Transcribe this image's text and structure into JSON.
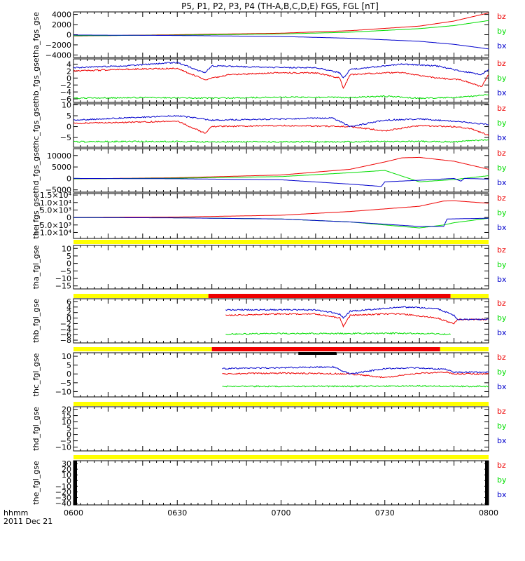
{
  "title": "P5, P1, P2, P3, P4 (TH-A,B,C,D,E) FGS, FGL [nT]",
  "footer": {
    "label_time": "hhmm",
    "label_date": "2011 Dec 21"
  },
  "colors": {
    "bz": "#ee0000",
    "by": "#00dd00",
    "bx": "#0000cc",
    "bar_yellow": "#ffff00",
    "bar_red": "#ee0000",
    "bar_black": "#000000"
  },
  "chart_data": {
    "type": "line",
    "xlabel": "hhmm",
    "x_ticks": [
      "0600",
      "0630",
      "0700",
      "0730",
      "0800"
    ],
    "x_range_minutes": [
      0,
      120
    ],
    "legend": [
      "bz",
      "by",
      "bx"
    ],
    "panels": [
      {
        "name": "tha_fgs_gse",
        "ylim": [
          -4500,
          4500
        ],
        "yticks": [
          "4000",
          "2000",
          "0",
          "−2000",
          "−4000"
        ],
        "ytick_values": [
          4000,
          2000,
          0,
          -2000,
          -4000
        ],
        "series": [
          {
            "name": "bz",
            "x": [
              0,
              30,
              60,
              80,
              100,
              110,
              120
            ],
            "y": [
              -250,
              0,
              300,
              800,
              1700,
              2700,
              4300
            ]
          },
          {
            "name": "by",
            "x": [
              0,
              30,
              60,
              80,
              100,
              110,
              120
            ],
            "y": [
              -200,
              -80,
              150,
              500,
              1200,
              1800,
              2800
            ]
          },
          {
            "name": "bx",
            "x": [
              0,
              30,
              60,
              80,
              100,
              110,
              120
            ],
            "y": [
              -60,
              -150,
              -350,
              -700,
              -1300,
              -1900,
              -2800
            ]
          }
        ]
      },
      {
        "name": "thb_fgs_gse",
        "ylim": [
          -7,
          5.5
        ],
        "yticks": [
          "4",
          "2",
          "0",
          "−2",
          "−4",
          "−6"
        ],
        "ytick_values": [
          4,
          2,
          0,
          -2,
          -4,
          -6
        ],
        "series": [
          {
            "name": "bz",
            "x": [
              0,
              15,
              30,
              38,
              45,
              60,
              70,
              77,
              78,
              80,
              90,
              95,
              105,
              112,
              118,
              120
            ],
            "y": [
              2,
              2.5,
              2.8,
              -0.5,
              1,
              1.5,
              1.5,
              0,
              -3,
              1,
              1.5,
              1.5,
              0,
              -0.5,
              -2.5,
              1
            ]
          },
          {
            "name": "by",
            "x": [
              0,
              20,
              40,
              60,
              80,
              90,
              100,
              110,
              120
            ],
            "y": [
              -5.8,
              -5.6,
              -5.8,
              -5.5,
              -5.6,
              -5.2,
              -5.8,
              -5.6,
              -4.8
            ]
          },
          {
            "name": "bx",
            "x": [
              0,
              15,
              30,
              38,
              40,
              60,
              70,
              77,
              78,
              80,
              90,
              95,
              105,
              112,
              118,
              120
            ],
            "y": [
              3,
              3.5,
              4.5,
              1.5,
              3.5,
              3,
              3,
              1.5,
              0,
              2.5,
              3.5,
              4,
              3.5,
              2,
              1,
              2.5
            ]
          }
        ]
      },
      {
        "name": "thc_fgs_gse",
        "ylim": [
          -9.5,
          10.5
        ],
        "yticks": [
          "10",
          "5",
          "0",
          "−5"
        ],
        "ytick_values": [
          10,
          5,
          0,
          -5
        ],
        "series": [
          {
            "name": "bz",
            "x": [
              0,
              15,
              30,
              38,
              40,
              60,
              80,
              90,
              100,
              110,
              115,
              120
            ],
            "y": [
              1.5,
              2,
              2.5,
              -3,
              0,
              0.5,
              0,
              -2,
              0.5,
              0,
              -1,
              -4
            ]
          },
          {
            "name": "by",
            "x": [
              0,
              20,
              40,
              60,
              80,
              100,
              110,
              120
            ],
            "y": [
              -7,
              -6.8,
              -7,
              -7,
              -7,
              -6.8,
              -7,
              -6
            ]
          },
          {
            "name": "bx",
            "x": [
              0,
              15,
              30,
              40,
              60,
              75,
              80,
              90,
              100,
              110,
              120
            ],
            "y": [
              3,
              4,
              5,
              3,
              3.5,
              4,
              0,
              3,
              3.5,
              2.5,
              1
            ]
          }
        ]
      },
      {
        "name": "thd_fgs_gse",
        "ylim": [
          -6000,
          13000
        ],
        "yticks": [
          "10000",
          "5000",
          "0",
          "−5000"
        ],
        "ytick_values": [
          10000,
          5000,
          0,
          -5000
        ],
        "series": [
          {
            "name": "bz",
            "x": [
              0,
              30,
              60,
              80,
              90,
              95,
              100,
              110,
              120
            ],
            "y": [
              -200,
              300,
              1500,
              4000,
              7200,
              9000,
              9200,
              7500,
              4000
            ]
          },
          {
            "name": "by",
            "x": [
              0,
              30,
              60,
              80,
              90,
              95,
              100,
              110,
              120
            ],
            "y": [
              -150,
              100,
              800,
              2500,
              3500,
              1000,
              -1500,
              -500,
              1200
            ]
          },
          {
            "name": "bx",
            "x": [
              0,
              30,
              60,
              80,
              89,
              90,
              100,
              110,
              112,
              113,
              120
            ],
            "y": [
              0,
              -150,
              -600,
              -2500,
              -3500,
              -1500,
              -800,
              0,
              -1200,
              0,
              -300
            ]
          }
        ]
      },
      {
        "name": "the_fgs_gse",
        "ylim": [
          -14000,
          16000
        ],
        "yticks": [
          "1.5×10⁴",
          "1.0×10⁴",
          "5.0×10³",
          "0",
          "−5.0×10³",
          "−1.0×10⁴"
        ],
        "ytick_values": [
          15000,
          10000,
          5000,
          0,
          -5000,
          -10000
        ],
        "series": [
          {
            "name": "bz",
            "x": [
              0,
              30,
              60,
              80,
              100,
              107,
              110,
              120
            ],
            "y": [
              0,
              300,
              1500,
              4000,
              7500,
              11000,
              11200,
              9500
            ]
          },
          {
            "name": "by",
            "x": [
              0,
              30,
              60,
              80,
              100,
              107,
              110,
              120
            ],
            "y": [
              -100,
              -200,
              -1000,
              -3000,
              -7000,
              -5000,
              -3500,
              -500
            ]
          },
          {
            "name": "bx",
            "x": [
              0,
              30,
              60,
              80,
              100,
              107,
              108,
              120
            ],
            "y": [
              -50,
              -250,
              -1000,
              -3000,
              -6000,
              -6000,
              -1000,
              -500
            ]
          }
        ]
      },
      {
        "name": "tha_fgl_gse",
        "ylim": [
          -17,
          12
        ],
        "yticks": [
          "10",
          "5",
          "0",
          "−5",
          "−10",
          "−15"
        ],
        "ytick_values": [
          10,
          5,
          0,
          -5,
          -10,
          -15
        ],
        "series": []
      },
      {
        "name": "thb_fgl_gse",
        "ylim": [
          -9,
          7
        ],
        "yticks": [
          "6",
          "4",
          "2",
          "0",
          "−2",
          "−4",
          "−6",
          "−8"
        ],
        "ytick_values": [
          6,
          4,
          2,
          0,
          -2,
          -4,
          -6,
          -8
        ],
        "series": [
          {
            "name": "bz",
            "x": [
              44,
              60,
              70,
              77,
              78,
              80,
              90,
              95,
              105,
              110,
              111,
              120
            ],
            "y": [
              1,
              1.5,
              1.5,
              0,
              -3,
              1,
              1.5,
              1.5,
              0,
              -2,
              -0.5,
              -0.5
            ]
          },
          {
            "name": "by",
            "x": [
              44,
              60,
              80,
              95,
              109
            ],
            "y": [
              -5.8,
              -5.6,
              -5.6,
              -5.5,
              -5.8
            ]
          },
          {
            "name": "bx",
            "x": [
              44,
              60,
              70,
              77,
              78,
              80,
              90,
              95,
              105,
              110,
              111,
              120
            ],
            "y": [
              3,
              3,
              3,
              1.5,
              0,
              2.5,
              3.5,
              4,
              3.5,
              1,
              -0.5,
              -0.5
            ]
          }
        ]
      },
      {
        "name": "thc_fgl_gse",
        "ylim": [
          -13,
          12
        ],
        "yticks": [
          "10",
          "5",
          "0",
          "−5",
          "−10"
        ],
        "ytick_values": [
          10,
          5,
          0,
          -5,
          -10
        ],
        "series": [
          {
            "name": "bz",
            "x": [
              43,
              60,
              80,
              90,
              100,
              108,
              110,
              120
            ],
            "y": [
              0,
              0.5,
              0,
              -2,
              0.5,
              1,
              0,
              0
            ]
          },
          {
            "name": "by",
            "x": [
              43,
              60,
              80,
              100,
              108,
              110,
              120
            ],
            "y": [
              -7,
              -7,
              -7,
              -6.8,
              -7,
              -7,
              -7
            ]
          },
          {
            "name": "bx",
            "x": [
              43,
              60,
              75,
              80,
              90,
              100,
              108,
              110,
              120
            ],
            "y": [
              3,
              3.5,
              4,
              0,
              3,
              3.5,
              2.5,
              1,
              1
            ]
          }
        ]
      },
      {
        "name": "thd_fgl_gse",
        "ylim": [
          -13,
          22
        ],
        "yticks": [
          "20",
          "15",
          "10",
          "5",
          "0",
          "−5",
          "−10"
        ],
        "ytick_values": [
          20,
          15,
          10,
          5,
          0,
          -5,
          -10
        ],
        "series": []
      },
      {
        "name": "the_fgl_gse",
        "ylim": [
          -43,
          35
        ],
        "yticks": [
          "30",
          "20",
          "10",
          "0",
          "−10",
          "−20",
          "−30",
          "−40"
        ],
        "ytick_values": [
          30,
          20,
          10,
          0,
          -10,
          -20,
          -30,
          -40
        ],
        "series": []
      }
    ],
    "mode_bars": [
      {
        "above_panel": 6,
        "segments": [
          {
            "color": "yellow",
            "x": [
              0,
              39
            ]
          },
          {
            "color": "red",
            "x": [
              39,
              109
            ]
          },
          {
            "color": "yellow",
            "x": [
              109,
              120
            ]
          }
        ]
      },
      {
        "above_panel": 7,
        "segments": [
          {
            "color": "yellow",
            "x": [
              0,
              40
            ]
          },
          {
            "color": "red",
            "x": [
              40,
              106
            ]
          },
          {
            "color": "yellow",
            "x": [
              106,
              120
            ]
          }
        ]
      },
      {
        "above_panel": 8,
        "segments": [
          {
            "color": "yellow",
            "x": [
              0,
              120
            ]
          }
        ]
      },
      {
        "above_panel": 9,
        "segments": [
          {
            "color": "yellow",
            "x": [
              0,
              120
            ]
          }
        ]
      },
      {
        "above_panel": 5,
        "segments": [
          {
            "color": "yellow",
            "x": [
              0,
              120
            ]
          }
        ]
      }
    ]
  }
}
